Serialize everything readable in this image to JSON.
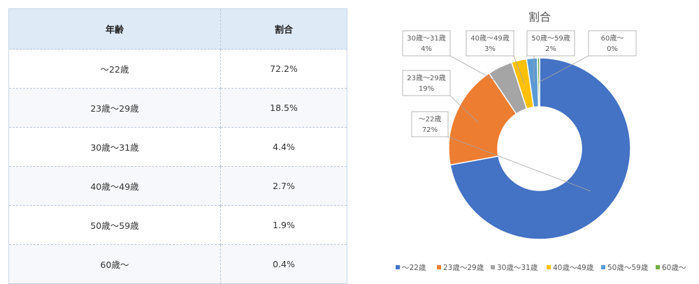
{
  "table": {
    "headers": [
      "年齢",
      "割合"
    ],
    "rows": [
      {
        "age": "～22歳",
        "pct": "72.2%"
      },
      {
        "age": "23歳～29歳",
        "pct": "18.5%"
      },
      {
        "age": "30歳～31歳",
        "pct": "4.4%"
      },
      {
        "age": "40歳～49歳",
        "pct": "2.7%"
      },
      {
        "age": "50歳～59歳",
        "pct": "1.9%"
      },
      {
        "age": "60歳～",
        "pct": "0.4%"
      }
    ]
  },
  "chart_data": {
    "type": "pie",
    "title": "割合",
    "legend_position": "bottom",
    "categories": [
      "～22歳",
      "23歳～29歳",
      "30歳～31歳",
      "40歳～49歳",
      "50歳～59歳",
      "60歳～"
    ],
    "values": [
      72.2,
      18.5,
      4.4,
      2.7,
      1.9,
      0.4
    ],
    "data_labels": [
      "72%",
      "19%",
      "4%",
      "3%",
      "2%",
      "0%"
    ],
    "colors": [
      "#4472c4",
      "#ed7d31",
      "#a5a5a5",
      "#ffc000",
      "#5b9bd5",
      "#70ad47"
    ]
  }
}
